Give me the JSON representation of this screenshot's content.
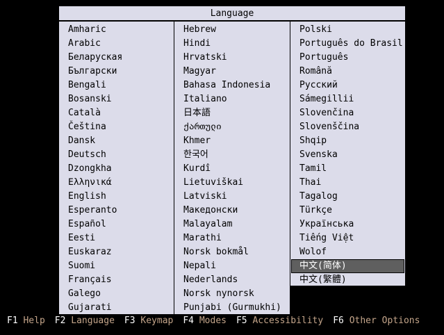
{
  "title": "Language",
  "columns": [
    [
      "Amharic",
      "Arabic",
      "Беларуская",
      "Български",
      "Bengali",
      "Bosanski",
      "Català",
      "Čeština",
      "Dansk",
      "Deutsch",
      "Dzongkha",
      "Ελληνικά",
      "English",
      "Esperanto",
      "Español",
      "Eesti",
      "Euskaraz",
      "Suomi",
      "Français",
      "Galego",
      "Gujarati"
    ],
    [
      "Hebrew",
      "Hindi",
      "Hrvatski",
      "Magyar",
      "Bahasa Indonesia",
      "Italiano",
      "日本語",
      "ქართული",
      "Khmer",
      "한국어",
      "Kurdî",
      "Lietuviškai",
      "Latviski",
      "Македонски",
      "Malayalam",
      "Marathi",
      "Norsk bokmål",
      "Nepali",
      "Nederlands",
      "Norsk nynorsk",
      "Punjabi (Gurmukhi)"
    ],
    [
      "Polski",
      "Português do Brasil",
      "Português",
      "Română",
      "Русский",
      "Sámegillii",
      "Slovenčina",
      "Slovenščina",
      "Shqip",
      "Svenska",
      "Tamil",
      "Thai",
      "Tagalog",
      "Türkçe",
      "Українська",
      "Tiếng Việt",
      "Wolof",
      "中文(简体)",
      "中文(繁體)"
    ]
  ],
  "selected": "中文(简体)",
  "footer": [
    {
      "key": "F1",
      "label": "Help"
    },
    {
      "key": "F2",
      "label": "Language"
    },
    {
      "key": "F3",
      "label": "Keymap"
    },
    {
      "key": "F4",
      "label": "Modes"
    },
    {
      "key": "F5",
      "label": "Accessibility"
    },
    {
      "key": "F6",
      "label": "Other Options"
    }
  ],
  "colors": {
    "panel": "#dcdcea",
    "selected": "#5f5f5f",
    "footer_label": "#c4a58a"
  }
}
